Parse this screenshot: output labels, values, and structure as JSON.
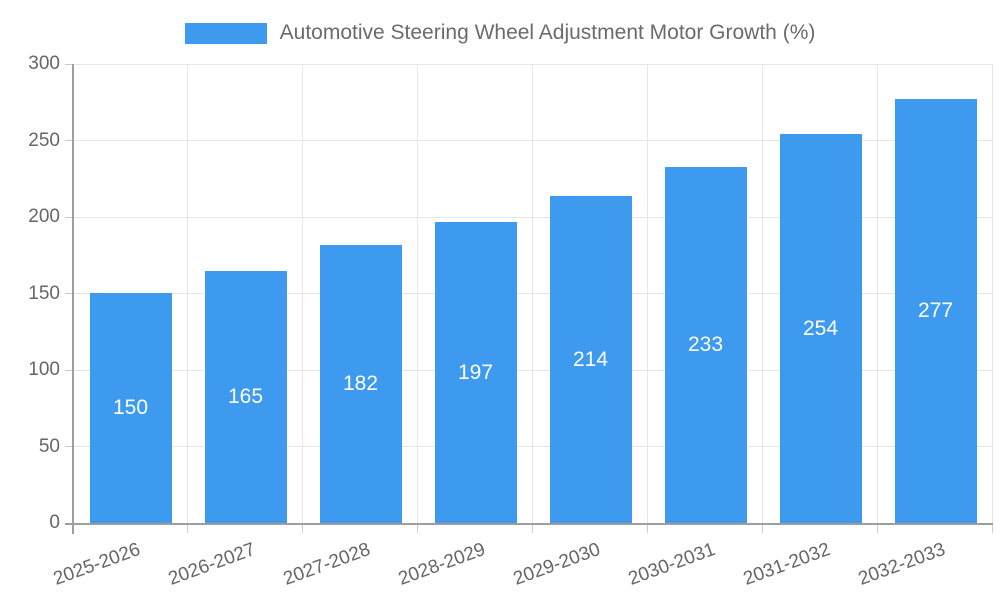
{
  "legend": {
    "items": [
      {
        "label": "Automotive Steering Wheel Adjustment Motor Growth (%)",
        "color": "#3e9aee"
      }
    ]
  },
  "chart_data": {
    "type": "bar",
    "title": "Automotive Steering Wheel Adjustment Motor Growth (%)",
    "categories": [
      "2025-2026",
      "2026-2027",
      "2027-2028",
      "2028-2029",
      "2029-2030",
      "2030-2031",
      "2031-2032",
      "2032-2033"
    ],
    "values": [
      150,
      165,
      182,
      197,
      214,
      233,
      254,
      277
    ],
    "xlabel": "",
    "ylabel": "",
    "ylim": [
      0,
      300
    ],
    "yticks": [
      0,
      50,
      100,
      150,
      200,
      250,
      300
    ],
    "grid": true,
    "legend_position": "top",
    "value_labels": "centered-inside-bars",
    "colors": {
      "bar": "#3e9aee",
      "value_label": "#ffffff",
      "axis_text": "#666666",
      "legend_text": "#6b6b6b",
      "gridline": "#e6e6e6",
      "axis_line": "#9e9e9e",
      "tick": "#cccccc",
      "background": "#ffffff"
    }
  }
}
